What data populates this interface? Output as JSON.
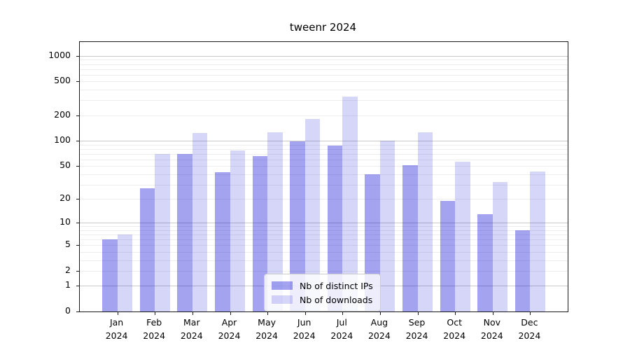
{
  "chart_data": {
    "type": "bar",
    "title": "tweenr 2024",
    "scale": "log1p",
    "categories": [
      "Jan",
      "Feb",
      "Mar",
      "Apr",
      "May",
      "Jun",
      "Jul",
      "Aug",
      "Sep",
      "Oct",
      "Nov",
      "Dec"
    ],
    "x_sub_label": "2024",
    "series": [
      {
        "name": "Nb of distinct IPs",
        "color": "rgba(0,0,210,0.36)",
        "values": [
          6,
          27,
          70,
          42,
          66,
          99,
          88,
          40,
          51,
          19,
          13,
          8
        ]
      },
      {
        "name": "Nb of downloads",
        "color": "rgba(0,0,210,0.16)",
        "values": [
          7,
          69,
          124,
          77,
          125,
          181,
          332,
          100,
          127,
          56,
          32,
          43
        ]
      }
    ],
    "yticks": [
      0,
      1,
      2,
      5,
      10,
      20,
      50,
      100,
      200,
      500,
      1000
    ],
    "y_major_grid": [
      1,
      10,
      100,
      1000
    ],
    "y_minor_grid": [
      2,
      3,
      4,
      5,
      6,
      7,
      8,
      9,
      20,
      30,
      40,
      50,
      60,
      70,
      80,
      90,
      200,
      300,
      400,
      500,
      600,
      700,
      800,
      900
    ],
    "ylim": [
      0,
      1455
    ],
    "xlabel": "",
    "ylabel": "",
    "grid": true,
    "legend_position": "lower center"
  },
  "colors": {
    "axis": "#1a1a1a",
    "grid_major": "#c9c9c9",
    "grid_minor": "#ededed",
    "background": "#ffffff",
    "bar_distinct_ips": "rgba(0,0,210,0.36)",
    "bar_downloads": "rgba(0,0,210,0.16)"
  }
}
